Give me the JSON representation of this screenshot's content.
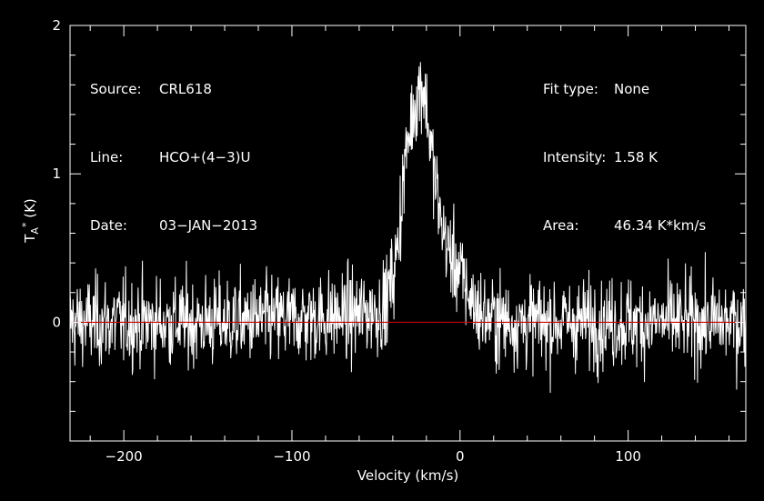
{
  "info_left": [
    {
      "label": "Source:",
      "value": "CRL618"
    },
    {
      "label": "Line:",
      "value": "HCO+(4−3)U"
    },
    {
      "label": "Date:",
      "value": "03−JAN−2013"
    }
  ],
  "info_right": [
    {
      "label": "Fit type:",
      "value": "None"
    },
    {
      "label": "Intensity:",
      "value": "1.58 K"
    },
    {
      "label": "Area:",
      "value": "46.34 K*km/s"
    }
  ],
  "chart_data": {
    "type": "line",
    "xlabel": "Velocity (km/s)",
    "ylabel": "T_A* (K)",
    "xlim": [
      -232,
      170
    ],
    "ylim": [
      -0.8,
      2.0
    ],
    "x_ticks": [
      -200,
      -100,
      0,
      100
    ],
    "x_tick_labels": [
      "−200",
      "−100",
      "0",
      "100"
    ],
    "y_ticks": [
      0,
      1,
      2
    ],
    "y_tick_labels": [
      "0",
      "1",
      "2"
    ],
    "baseline": 0,
    "noise_rms": 0.15,
    "series": [
      {
        "x": [
          -232,
          -200,
          -150,
          -100,
          -60,
          -45,
          -38,
          -33,
          -28,
          -24,
          -22,
          -20,
          -17,
          -12,
          -7,
          -2,
          3,
          8,
          14,
          30,
          100,
          170
        ],
        "y": [
          0.0,
          0.0,
          0.0,
          0.02,
          0.05,
          0.1,
          0.4,
          1.05,
          1.42,
          1.58,
          1.6,
          1.45,
          1.15,
          0.72,
          0.48,
          0.38,
          0.25,
          0.12,
          0.04,
          0.0,
          0.0,
          0.0
        ]
      }
    ],
    "grid": false,
    "colors": {
      "spectrum": "#ffffff",
      "baseline": "#cc0000",
      "axes": "#ffffff",
      "background": "#000000"
    }
  }
}
